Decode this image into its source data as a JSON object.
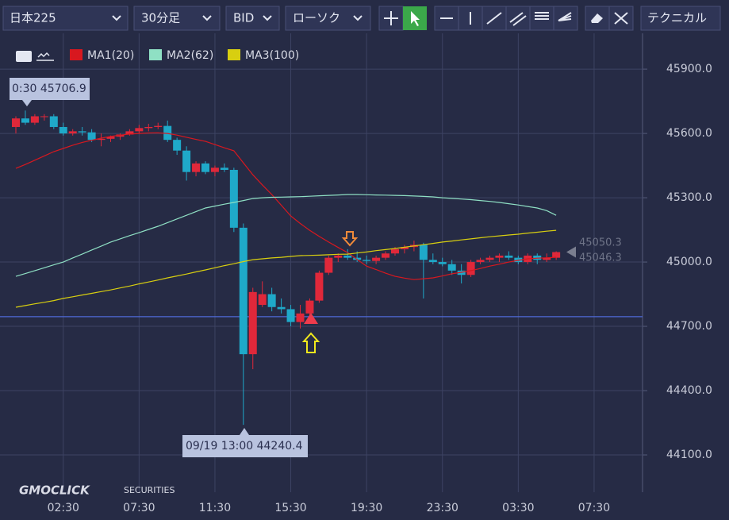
{
  "toolbar": {
    "symbol": "日本225",
    "timeframe": "30分足",
    "price_type": "BID",
    "chart_style": "ローソク",
    "technical": "テクニカル"
  },
  "logo": {
    "brand": "GMOCLICK",
    "sub": "SECURITIES"
  },
  "chart_data": {
    "type": "candlestick",
    "categories": [
      null,
      null,
      null,
      null,
      null,
      "02:30",
      null,
      null,
      null,
      null,
      null,
      null,
      null,
      "07:30",
      null,
      null,
      null,
      null,
      null,
      null,
      null,
      "11:30",
      null,
      null,
      null,
      null,
      null,
      null,
      null,
      "15:30",
      null,
      null,
      null,
      null,
      null,
      null,
      null,
      "19:30",
      null,
      null,
      null,
      null,
      null,
      null,
      null,
      "23:30",
      null,
      null,
      null,
      null,
      null,
      null,
      null,
      "03:30",
      null,
      null,
      null,
      null,
      null,
      null,
      null,
      "07:30"
    ],
    "open": [
      45630,
      45670,
      45650,
      45680,
      45680,
      45630,
      45600,
      45610,
      45605,
      45570,
      45575,
      45585,
      45595,
      45610,
      45625,
      45630,
      45635,
      45570,
      45520,
      45420,
      45460,
      45420,
      45440,
      45430,
      45160,
      44570,
      44800,
      44850,
      44790,
      44780,
      44720,
      44760,
      44820,
      44950,
      45020,
      45030,
      45020,
      45010,
      45005,
      45020,
      45040,
      45060,
      45070,
      45080,
      45010,
      45000,
      44990,
      44960,
      44940,
      45000,
      45010,
      45020,
      45030,
      45020,
      45000,
      45030,
      45010,
      45020,
      null,
      null,
      null,
      null
    ],
    "high": [
      45680,
      45706.9,
      45690,
      45690,
      45690,
      45650,
      45620,
      45630,
      45620,
      45600,
      45590,
      45600,
      45620,
      45640,
      45645,
      45650,
      45660,
      45580,
      45540,
      45470,
      45470,
      45450,
      45460,
      45440,
      45180,
      44880,
      44910,
      44880,
      44830,
      44800,
      44800,
      44830,
      44960,
      45030,
      45040,
      45060,
      45050,
      45030,
      45030,
      45050,
      45070,
      45080,
      45100,
      45090,
      45040,
      45020,
      45010,
      44990,
      45010,
      45020,
      45030,
      45040,
      45050,
      45030,
      45040,
      45040,
      45040,
      45050,
      null,
      null,
      null,
      null
    ],
    "low": [
      45600,
      45640,
      45640,
      45660,
      45620,
      45590,
      45590,
      45590,
      45560,
      45540,
      45560,
      45570,
      45590,
      45600,
      45610,
      45620,
      45560,
      45500,
      45380,
      45400,
      45410,
      45400,
      45420,
      45140,
      44240.4,
      44500,
      44790,
      44770,
      44760,
      44700,
      44690,
      44740,
      44810,
      44940,
      45000,
      45010,
      45000,
      44990,
      44990,
      45010,
      45030,
      45040,
      45050,
      44830,
      44990,
      44980,
      44940,
      44900,
      44930,
      44990,
      45000,
      45000,
      45010,
      44990,
      44990,
      44990,
      45000,
      45010,
      null,
      null,
      null,
      null
    ],
    "close": [
      45670,
      45650,
      45680,
      45680,
      45630,
      45600,
      45610,
      45605,
      45570,
      45575,
      45585,
      45595,
      45610,
      45625,
      45630,
      45635,
      45570,
      45520,
      45420,
      45460,
      45420,
      45440,
      45430,
      45160,
      44570,
      44860,
      44850,
      44790,
      44780,
      44720,
      44760,
      44820,
      44950,
      45020,
      45030,
      45020,
      45010,
      45005,
      45020,
      45040,
      45060,
      45070,
      45080,
      45010,
      45000,
      44990,
      44960,
      44940,
      45000,
      45010,
      45020,
      45030,
      45020,
      45000,
      45030,
      45010,
      45020,
      45046.3,
      null,
      null,
      null,
      null
    ],
    "up_color": "#e0283a",
    "down_color": "#1fa9c9",
    "series": [
      {
        "name": "MA1(20)",
        "color": "#d8181f",
        "values": [
          45437,
          45455,
          45475,
          45495,
          45515,
          45530,
          45545,
          45558,
          45568,
          45578,
          45586,
          45592,
          45597,
          45600,
          45602,
          45603,
          45600,
          45592,
          45582,
          45572,
          45563,
          45548,
          45533,
          45519,
          45463,
          45407,
          45360,
          45315,
          45265,
          45215,
          45180,
          45148,
          45120,
          45093,
          45068,
          45044,
          45012,
          44981,
          44965,
          44948,
          44933,
          44925,
          44918,
          44922,
          44926,
          44935,
          44945,
          44952,
          44960,
          44970,
          44981,
          44990,
          45000,
          45008,
          45015,
          45018,
          45020,
          45022,
          null,
          null,
          null,
          null
        ]
      },
      {
        "name": "MA2(62)",
        "color": "#8fe0c4",
        "values": [
          44933,
          44946,
          44960,
          44973,
          44987,
          45000,
          45019,
          45037,
          45056,
          45074,
          45093,
          45108,
          45123,
          45137,
          45152,
          45167,
          45184,
          45201,
          45218,
          45235,
          45252,
          45261,
          45270,
          45278,
          45287,
          45296,
          45300,
          45302,
          45303,
          45304,
          45305,
          45307,
          45309,
          45311,
          45313,
          45315,
          45315,
          45314,
          45313,
          45312,
          45311,
          45310,
          45308,
          45306,
          45304,
          45300,
          45297,
          45294,
          45291,
          45287,
          45283,
          45278,
          45272,
          45266,
          45259,
          45252,
          45240,
          45218,
          null,
          null,
          null,
          null
        ]
      },
      {
        "name": "MA3(100)",
        "color": "#d8cf10",
        "values": [
          44789,
          44797,
          44805,
          44812,
          44820,
          44830,
          44838,
          44846,
          44854,
          44862,
          44870,
          44879,
          44888,
          44898,
          44907,
          44916,
          44926,
          44935,
          44944,
          44954,
          44963,
          44973,
          44983,
          44992,
          45002,
          45011,
          45015,
          45019,
          45022,
          45026,
          45030,
          45031,
          45032,
          45034,
          45036,
          45037,
          45042,
          45047,
          45053,
          45058,
          45063,
          45069,
          45075,
          45081,
          45087,
          45093,
          45098,
          45103,
          45108,
          45113,
          45118,
          45122,
          45126,
          45130,
          45135,
          45139,
          45144,
          45148,
          null,
          null,
          null,
          null
        ]
      }
    ],
    "ylim": [
      43926,
      46067
    ],
    "yticks": [
      {
        "value": 44100,
        "label": "44100.0"
      },
      {
        "value": 44400,
        "label": "44400.0"
      },
      {
        "value": 44700,
        "label": "44700.0"
      },
      {
        "value": 45000,
        "label": "45000.0"
      },
      {
        "value": 45300,
        "label": "45300.0"
      },
      {
        "value": 45600,
        "label": "45600.0"
      },
      {
        "value": 45900,
        "label": "45900.0"
      }
    ],
    "grid": true,
    "order_line": 44745,
    "price_labels": [
      "45050.3",
      "45046.3"
    ],
    "high_label": "0:30 45706.9",
    "low_label": "09/19 13:00 44240.4"
  }
}
